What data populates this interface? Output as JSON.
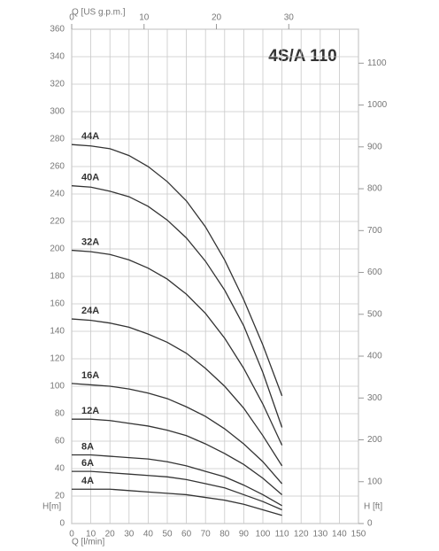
{
  "chart_data": {
    "type": "line",
    "title": "4S/A 110",
    "xlabel": "Q [l/min]",
    "ylabel": "H[m]",
    "x2label": "Q [US g.p.m.]",
    "y2label": "H [ft]",
    "x": [
      0,
      10,
      20,
      30,
      40,
      50,
      60,
      70,
      80,
      90,
      100,
      110
    ],
    "series": [
      {
        "name": "44A",
        "color": "#333333",
        "values": [
          276,
          275,
          273,
          268,
          260,
          249,
          235,
          216,
          192,
          163,
          130,
          93
        ]
      },
      {
        "name": "40A",
        "color": "#333333",
        "values": [
          246,
          245,
          242,
          238,
          231,
          221,
          208,
          191,
          170,
          144,
          110,
          70
        ]
      },
      {
        "name": "32A",
        "color": "#333333",
        "values": [
          199,
          198,
          196,
          192,
          186,
          178,
          167,
          153,
          135,
          113,
          87,
          57
        ]
      },
      {
        "name": "24A",
        "color": "#333333",
        "values": [
          149,
          148,
          146,
          143,
          138,
          132,
          124,
          113,
          100,
          84,
          64,
          42
        ]
      },
      {
        "name": "16A",
        "color": "#333333",
        "values": [
          102,
          101,
          100,
          98,
          95,
          91,
          85,
          78,
          69,
          58,
          45,
          29
        ]
      },
      {
        "name": "12A",
        "color": "#333333",
        "values": [
          76,
          76,
          75,
          73,
          71,
          68,
          64,
          58,
          51,
          43,
          33,
          21
        ]
      },
      {
        "name": "8A",
        "color": "#333333",
        "values": [
          50,
          50,
          49,
          48,
          47,
          45,
          42,
          38,
          34,
          28,
          21,
          13
        ]
      },
      {
        "name": "6A",
        "color": "#333333",
        "values": [
          38,
          38,
          37,
          36,
          35,
          34,
          32,
          29,
          26,
          21,
          16,
          10
        ]
      },
      {
        "name": "4A",
        "color": "#333333",
        "values": [
          25,
          25,
          25,
          24,
          23,
          22,
          21,
          19,
          17,
          14,
          10,
          6
        ]
      }
    ],
    "xlim": [
      0,
      150
    ],
    "xticks": [
      0,
      10,
      20,
      30,
      40,
      50,
      60,
      70,
      80,
      90,
      100,
      110,
      120,
      130,
      140,
      150
    ],
    "ylim": [
      0,
      360
    ],
    "yticks": [
      0,
      20,
      40,
      60,
      80,
      100,
      120,
      140,
      160,
      180,
      200,
      220,
      240,
      260,
      280,
      300,
      320,
      340,
      360
    ],
    "x2lim": [
      0,
      39.63
    ],
    "x2ticks": [
      0,
      10,
      20,
      30
    ],
    "y2lim": [
      0,
      1181.1
    ],
    "y2ticks": [
      0,
      100,
      200,
      300,
      400,
      500,
      600,
      700,
      800,
      900,
      1000,
      1100
    ],
    "grid": true
  }
}
